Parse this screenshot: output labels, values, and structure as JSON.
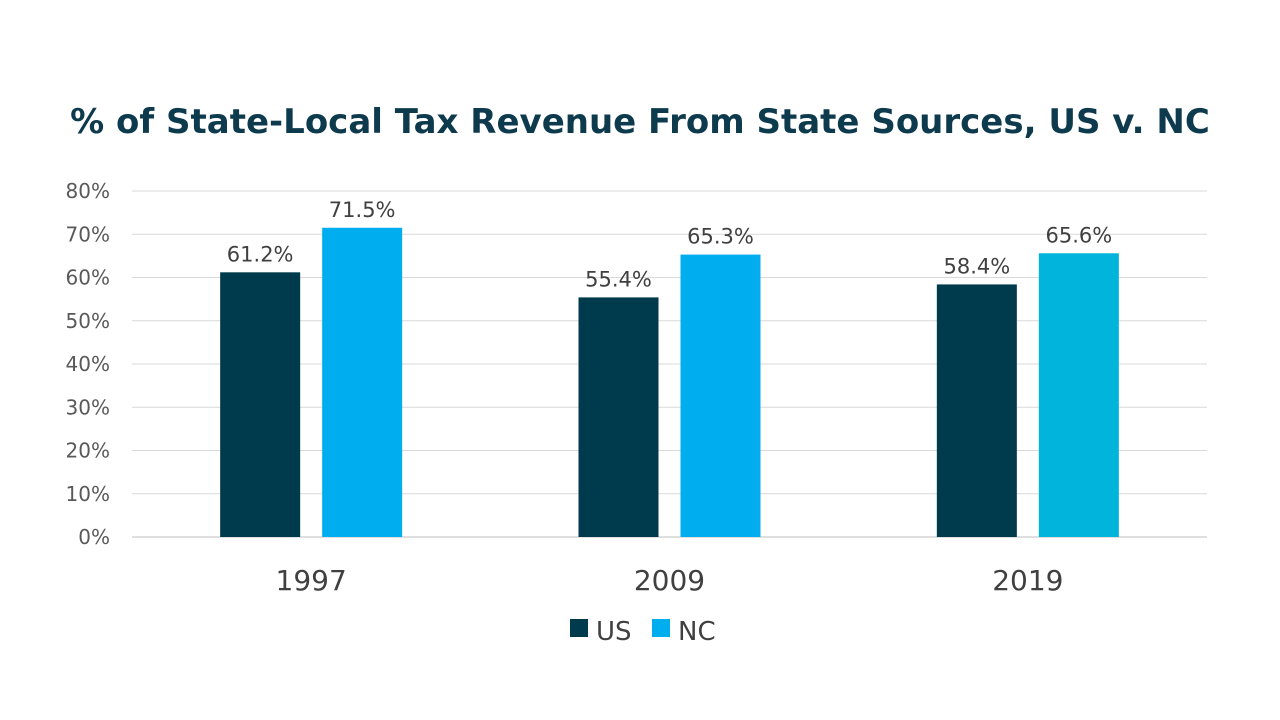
{
  "chart_data": {
    "type": "bar",
    "title": "% of State-Local Tax Revenue From State Sources, US v. NC",
    "xlabel": "",
    "ylabel": "",
    "categories": [
      "1997",
      "2009",
      "2019"
    ],
    "series": [
      {
        "name": "US",
        "values": [
          61.2,
          55.4,
          58.4
        ],
        "labels": [
          "61.2%",
          "55.4%",
          "58.4%"
        ],
        "color": "#003a4d"
      },
      {
        "name": "NC",
        "values": [
          71.5,
          65.3,
          65.6
        ],
        "labels": [
          "71.5%",
          "65.3%",
          "65.6%"
        ],
        "color": "#00aeef"
      }
    ],
    "ylim": [
      0,
      80
    ],
    "yticks": [
      "0%",
      "10%",
      "20%",
      "30%",
      "40%",
      "50%",
      "60%",
      "70%",
      "80%"
    ],
    "grid": true,
    "legend": "bottom-center"
  }
}
